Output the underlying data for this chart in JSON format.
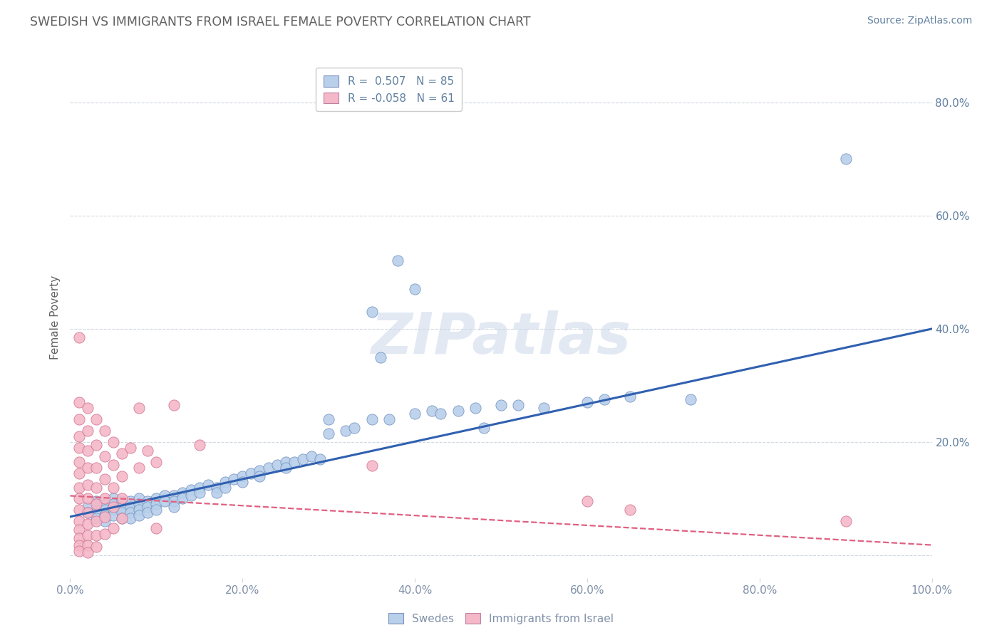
{
  "title": "SWEDISH VS IMMIGRANTS FROM ISRAEL FEMALE POVERTY CORRELATION CHART",
  "source": "Source: ZipAtlas.com",
  "ylabel": "Female Poverty",
  "xlim": [
    0.0,
    1.0
  ],
  "ylim": [
    -0.04,
    0.88
  ],
  "xticks": [
    0.0,
    0.2,
    0.4,
    0.6,
    0.8,
    1.0
  ],
  "xtick_labels": [
    "0.0%",
    "20.0%",
    "40.0%",
    "60.0%",
    "80.0%",
    "100.0%"
  ],
  "ytick_positions": [
    0.0,
    0.2,
    0.4,
    0.6,
    0.8
  ],
  "right_ytick_labels": [
    "",
    "20.0%",
    "40.0%",
    "60.0%",
    "80.0%"
  ],
  "legend_line1": "R =  0.507   N = 85",
  "legend_line2": "R = -0.058   N = 61",
  "color_blue": "#b8d0ea",
  "color_pink": "#f4b8c8",
  "line_blue": "#3060b0",
  "line_pink": "#e06080",
  "watermark": "ZIPatlas",
  "title_color": "#606060",
  "axis_label_color": "#6080a0",
  "tick_color": "#8090a8",
  "grid_color": "#d0d8e0",
  "blue_line_x0": 0.0,
  "blue_line_y0": 0.068,
  "blue_line_x1": 1.0,
  "blue_line_y1": 0.4,
  "pink_line_x0": 0.0,
  "pink_line_y0": 0.105,
  "pink_line_x1": 1.0,
  "pink_line_y1": 0.018,
  "blue_scatter": [
    [
      0.02,
      0.085
    ],
    [
      0.02,
      0.075
    ],
    [
      0.03,
      0.095
    ],
    [
      0.03,
      0.075
    ],
    [
      0.03,
      0.065
    ],
    [
      0.04,
      0.09
    ],
    [
      0.04,
      0.08
    ],
    [
      0.04,
      0.07
    ],
    [
      0.04,
      0.06
    ],
    [
      0.05,
      0.1
    ],
    [
      0.05,
      0.09
    ],
    [
      0.05,
      0.08
    ],
    [
      0.05,
      0.07
    ],
    [
      0.06,
      0.095
    ],
    [
      0.06,
      0.085
    ],
    [
      0.06,
      0.075
    ],
    [
      0.06,
      0.065
    ],
    [
      0.07,
      0.095
    ],
    [
      0.07,
      0.085
    ],
    [
      0.07,
      0.075
    ],
    [
      0.07,
      0.065
    ],
    [
      0.08,
      0.1
    ],
    [
      0.08,
      0.09
    ],
    [
      0.08,
      0.08
    ],
    [
      0.08,
      0.07
    ],
    [
      0.09,
      0.095
    ],
    [
      0.09,
      0.085
    ],
    [
      0.09,
      0.075
    ],
    [
      0.1,
      0.1
    ],
    [
      0.1,
      0.09
    ],
    [
      0.1,
      0.08
    ],
    [
      0.11,
      0.105
    ],
    [
      0.11,
      0.095
    ],
    [
      0.12,
      0.105
    ],
    [
      0.12,
      0.095
    ],
    [
      0.12,
      0.085
    ],
    [
      0.13,
      0.11
    ],
    [
      0.13,
      0.1
    ],
    [
      0.14,
      0.115
    ],
    [
      0.14,
      0.105
    ],
    [
      0.15,
      0.12
    ],
    [
      0.15,
      0.11
    ],
    [
      0.16,
      0.125
    ],
    [
      0.17,
      0.12
    ],
    [
      0.17,
      0.11
    ],
    [
      0.18,
      0.13
    ],
    [
      0.18,
      0.12
    ],
    [
      0.19,
      0.135
    ],
    [
      0.2,
      0.14
    ],
    [
      0.2,
      0.13
    ],
    [
      0.21,
      0.145
    ],
    [
      0.22,
      0.15
    ],
    [
      0.22,
      0.14
    ],
    [
      0.23,
      0.155
    ],
    [
      0.24,
      0.16
    ],
    [
      0.25,
      0.165
    ],
    [
      0.25,
      0.155
    ],
    [
      0.26,
      0.165
    ],
    [
      0.27,
      0.17
    ],
    [
      0.28,
      0.175
    ],
    [
      0.29,
      0.17
    ],
    [
      0.3,
      0.24
    ],
    [
      0.3,
      0.215
    ],
    [
      0.32,
      0.22
    ],
    [
      0.33,
      0.225
    ],
    [
      0.35,
      0.43
    ],
    [
      0.35,
      0.24
    ],
    [
      0.36,
      0.35
    ],
    [
      0.37,
      0.24
    ],
    [
      0.38,
      0.52
    ],
    [
      0.4,
      0.25
    ],
    [
      0.4,
      0.47
    ],
    [
      0.42,
      0.255
    ],
    [
      0.43,
      0.25
    ],
    [
      0.45,
      0.255
    ],
    [
      0.47,
      0.26
    ],
    [
      0.48,
      0.225
    ],
    [
      0.5,
      0.265
    ],
    [
      0.52,
      0.265
    ],
    [
      0.55,
      0.26
    ],
    [
      0.6,
      0.27
    ],
    [
      0.62,
      0.275
    ],
    [
      0.65,
      0.28
    ],
    [
      0.72,
      0.275
    ],
    [
      0.9,
      0.7
    ]
  ],
  "pink_scatter": [
    [
      0.01,
      0.385
    ],
    [
      0.01,
      0.27
    ],
    [
      0.01,
      0.24
    ],
    [
      0.01,
      0.21
    ],
    [
      0.01,
      0.19
    ],
    [
      0.01,
      0.165
    ],
    [
      0.01,
      0.145
    ],
    [
      0.01,
      0.12
    ],
    [
      0.01,
      0.1
    ],
    [
      0.01,
      0.08
    ],
    [
      0.01,
      0.06
    ],
    [
      0.01,
      0.045
    ],
    [
      0.01,
      0.03
    ],
    [
      0.01,
      0.018
    ],
    [
      0.01,
      0.008
    ],
    [
      0.02,
      0.26
    ],
    [
      0.02,
      0.22
    ],
    [
      0.02,
      0.185
    ],
    [
      0.02,
      0.155
    ],
    [
      0.02,
      0.125
    ],
    [
      0.02,
      0.1
    ],
    [
      0.02,
      0.075
    ],
    [
      0.02,
      0.055
    ],
    [
      0.02,
      0.035
    ],
    [
      0.02,
      0.018
    ],
    [
      0.02,
      0.005
    ],
    [
      0.03,
      0.24
    ],
    [
      0.03,
      0.195
    ],
    [
      0.03,
      0.155
    ],
    [
      0.03,
      0.12
    ],
    [
      0.03,
      0.09
    ],
    [
      0.03,
      0.06
    ],
    [
      0.03,
      0.035
    ],
    [
      0.03,
      0.015
    ],
    [
      0.04,
      0.22
    ],
    [
      0.04,
      0.175
    ],
    [
      0.04,
      0.135
    ],
    [
      0.04,
      0.1
    ],
    [
      0.04,
      0.068
    ],
    [
      0.04,
      0.038
    ],
    [
      0.05,
      0.2
    ],
    [
      0.05,
      0.16
    ],
    [
      0.05,
      0.12
    ],
    [
      0.05,
      0.085
    ],
    [
      0.05,
      0.048
    ],
    [
      0.06,
      0.18
    ],
    [
      0.06,
      0.14
    ],
    [
      0.06,
      0.1
    ],
    [
      0.06,
      0.065
    ],
    [
      0.07,
      0.19
    ],
    [
      0.08,
      0.26
    ],
    [
      0.08,
      0.155
    ],
    [
      0.09,
      0.185
    ],
    [
      0.1,
      0.165
    ],
    [
      0.1,
      0.048
    ],
    [
      0.12,
      0.265
    ],
    [
      0.15,
      0.195
    ],
    [
      0.35,
      0.158
    ],
    [
      0.6,
      0.095
    ],
    [
      0.65,
      0.08
    ],
    [
      0.9,
      0.06
    ]
  ]
}
